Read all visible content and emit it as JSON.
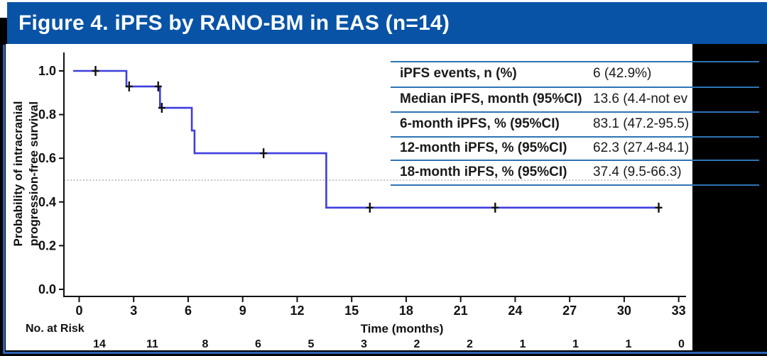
{
  "title": "Figure 4. iPFS by RANO-BM in EAS (n=14)",
  "colors": {
    "title_bar": "#0853a6",
    "table_line": "#2e74b5",
    "frame_line": "#2a64b4",
    "curve": "#3e3ee0",
    "axis": "#111111",
    "reference_dotted": "#b3b3b3"
  },
  "stats_table": {
    "rows": [
      {
        "label": "iPFS events, n (%)",
        "value": "6 (42.9%)"
      },
      {
        "label": "Median iPFS, month (95%CI)",
        "value": "13.6 (4.4-not ev"
      },
      {
        "label": "6-month iPFS, % (95%CI)",
        "value": "83.1 (47.2-95.5)"
      },
      {
        "label": "12-month iPFS, % (95%CI)",
        "value": "62.3 (27.4-84.1)"
      },
      {
        "label": "18-month iPFS, % (95%CI)",
        "value": "37.4 (9.5-66.3)"
      }
    ]
  },
  "chart_data": {
    "type": "line",
    "subtype": "kaplan-meier-step",
    "xlabel": "Time (months)",
    "ylabel_lines": [
      "Probability of intracranial",
      "progression-free survival"
    ],
    "xlim": [
      0,
      33
    ],
    "ylim": [
      0.0,
      1.0
    ],
    "x_ticks": [
      0,
      3,
      6,
      9,
      12,
      15,
      18,
      21,
      24,
      27,
      30,
      33
    ],
    "y_ticks": [
      1.0,
      0.8,
      0.6,
      0.4,
      0.2,
      0.0
    ],
    "grid": false,
    "reference_line_y": 0.5,
    "steps": [
      {
        "t": 0.0,
        "p": 1.0
      },
      {
        "t": 2.6,
        "p": 0.929
      },
      {
        "t": 4.45,
        "p": 0.831
      },
      {
        "t": 6.2,
        "p": 0.727
      },
      {
        "t": 6.35,
        "p": 0.623
      },
      {
        "t": 13.6,
        "p": 0.374
      }
    ],
    "end_t": 32.0,
    "censor_marks": [
      {
        "t": 0.9,
        "p": 1.0
      },
      {
        "t": 2.75,
        "p": 0.929
      },
      {
        "t": 4.35,
        "p": 0.929
      },
      {
        "t": 4.55,
        "p": 0.831
      },
      {
        "t": 10.15,
        "p": 0.623
      },
      {
        "t": 16.0,
        "p": 0.374
      },
      {
        "t": 22.9,
        "p": 0.374
      },
      {
        "t": 31.9,
        "p": 0.374
      }
    ]
  },
  "risk_table": {
    "label": "No. at Risk",
    "values": [
      14,
      11,
      8,
      6,
      5,
      3,
      2,
      2,
      1,
      1,
      1,
      0
    ]
  }
}
